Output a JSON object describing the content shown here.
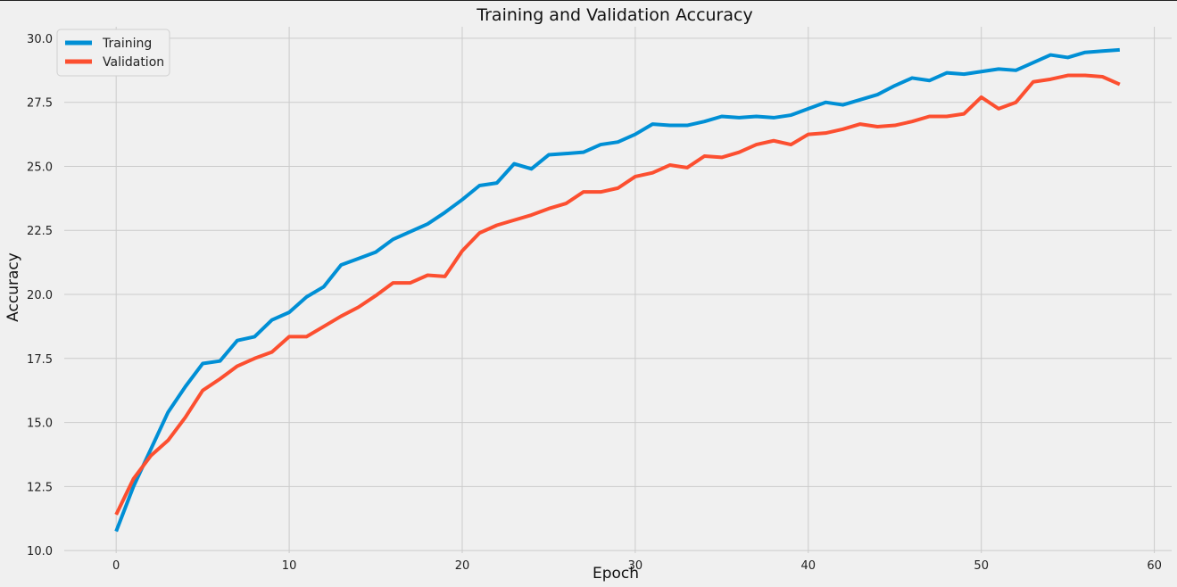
{
  "chart_data": {
    "type": "line",
    "title": "Training and Validation Accuracy",
    "xlabel": "Epoch",
    "ylabel": "Accuracy",
    "xlim": [
      -3,
      61
    ],
    "ylim": [
      9.9,
      30.45
    ],
    "xticks": [
      0,
      10,
      20,
      30,
      40,
      50,
      60
    ],
    "yticks": [
      10.0,
      12.5,
      15.0,
      17.5,
      20.0,
      22.5,
      25.0,
      27.5,
      30.0
    ],
    "grid": true,
    "legend_position": "top-left",
    "x": [
      0,
      1,
      2,
      3,
      4,
      5,
      6,
      7,
      8,
      9,
      10,
      11,
      12,
      13,
      14,
      15,
      16,
      17,
      18,
      19,
      20,
      21,
      22,
      23,
      24,
      25,
      26,
      27,
      28,
      29,
      30,
      31,
      32,
      33,
      34,
      35,
      36,
      37,
      38,
      39,
      40,
      41,
      42,
      43,
      44,
      45,
      46,
      47,
      48,
      49,
      50,
      51,
      52,
      53,
      54,
      55,
      56,
      57,
      58
    ],
    "series": [
      {
        "name": "Training",
        "color": "#008fd5",
        "values": [
          10.75,
          12.5,
          13.95,
          15.4,
          16.4,
          17.3,
          17.4,
          18.2,
          18.35,
          19.0,
          19.3,
          19.9,
          20.3,
          21.15,
          21.4,
          21.65,
          22.15,
          22.45,
          22.75,
          23.2,
          23.7,
          24.25,
          24.35,
          25.1,
          24.9,
          25.45,
          25.5,
          25.55,
          25.85,
          25.95,
          26.25,
          26.65,
          26.6,
          26.6,
          26.75,
          26.95,
          26.9,
          26.95,
          26.9,
          27.0,
          27.25,
          27.5,
          27.4,
          27.6,
          27.8,
          28.15,
          28.45,
          28.35,
          28.65,
          28.6,
          28.7,
          28.8,
          28.75,
          29.05,
          29.35,
          29.25,
          29.45,
          29.5,
          29.55
        ]
      },
      {
        "name": "Validation",
        "color": "#fc4f30",
        "values": [
          11.4,
          12.8,
          13.7,
          14.3,
          15.2,
          16.25,
          16.7,
          17.2,
          17.5,
          17.75,
          18.35,
          18.35,
          18.75,
          19.15,
          19.5,
          19.95,
          20.45,
          20.45,
          20.75,
          20.7,
          21.7,
          22.4,
          22.7,
          22.9,
          23.1,
          23.35,
          23.55,
          24.0,
          24.0,
          24.15,
          24.6,
          24.75,
          25.05,
          24.95,
          25.4,
          25.35,
          25.55,
          25.85,
          26.0,
          25.85,
          26.25,
          26.3,
          26.45,
          26.65,
          26.55,
          26.6,
          26.75,
          26.95,
          26.95,
          27.05,
          27.7,
          27.25,
          27.5,
          28.3,
          28.4,
          28.55,
          28.55,
          28.5,
          28.2
        ]
      }
    ]
  }
}
